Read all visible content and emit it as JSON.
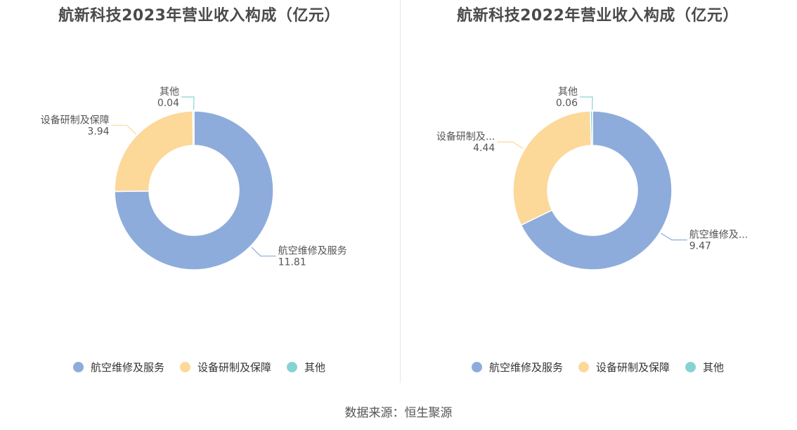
{
  "chart_data": [
    {
      "type": "pie",
      "title": "航新科技2023年营业收入构成（亿元）",
      "slices": [
        {
          "label": "航空维修及服务",
          "callout_label": "航空维修及服务",
          "value": 11.81,
          "display_value": "11.81"
        },
        {
          "label": "设备研制及保障",
          "callout_label": "设备研制及保障",
          "value": 3.94,
          "display_value": "3.94"
        },
        {
          "label": "其他",
          "callout_label": "其他",
          "value": 0.04,
          "display_value": "0.04"
        }
      ],
      "legend_position": "bottom"
    },
    {
      "type": "pie",
      "title": "航新科技2022年营业收入构成（亿元）",
      "slices": [
        {
          "label": "航空维修及服务",
          "callout_label": "航空维修及...",
          "value": 9.47,
          "display_value": "9.47"
        },
        {
          "label": "设备研制及保障",
          "callout_label": "设备研制及...",
          "value": 4.44,
          "display_value": "4.44"
        },
        {
          "label": "其他",
          "callout_label": "其他",
          "value": 0.06,
          "display_value": "0.06"
        }
      ],
      "legend_position": "bottom"
    }
  ],
  "colors": [
    "#8eacdb",
    "#fcd899",
    "#87d3d3"
  ],
  "source": "数据来源：恒生聚源"
}
